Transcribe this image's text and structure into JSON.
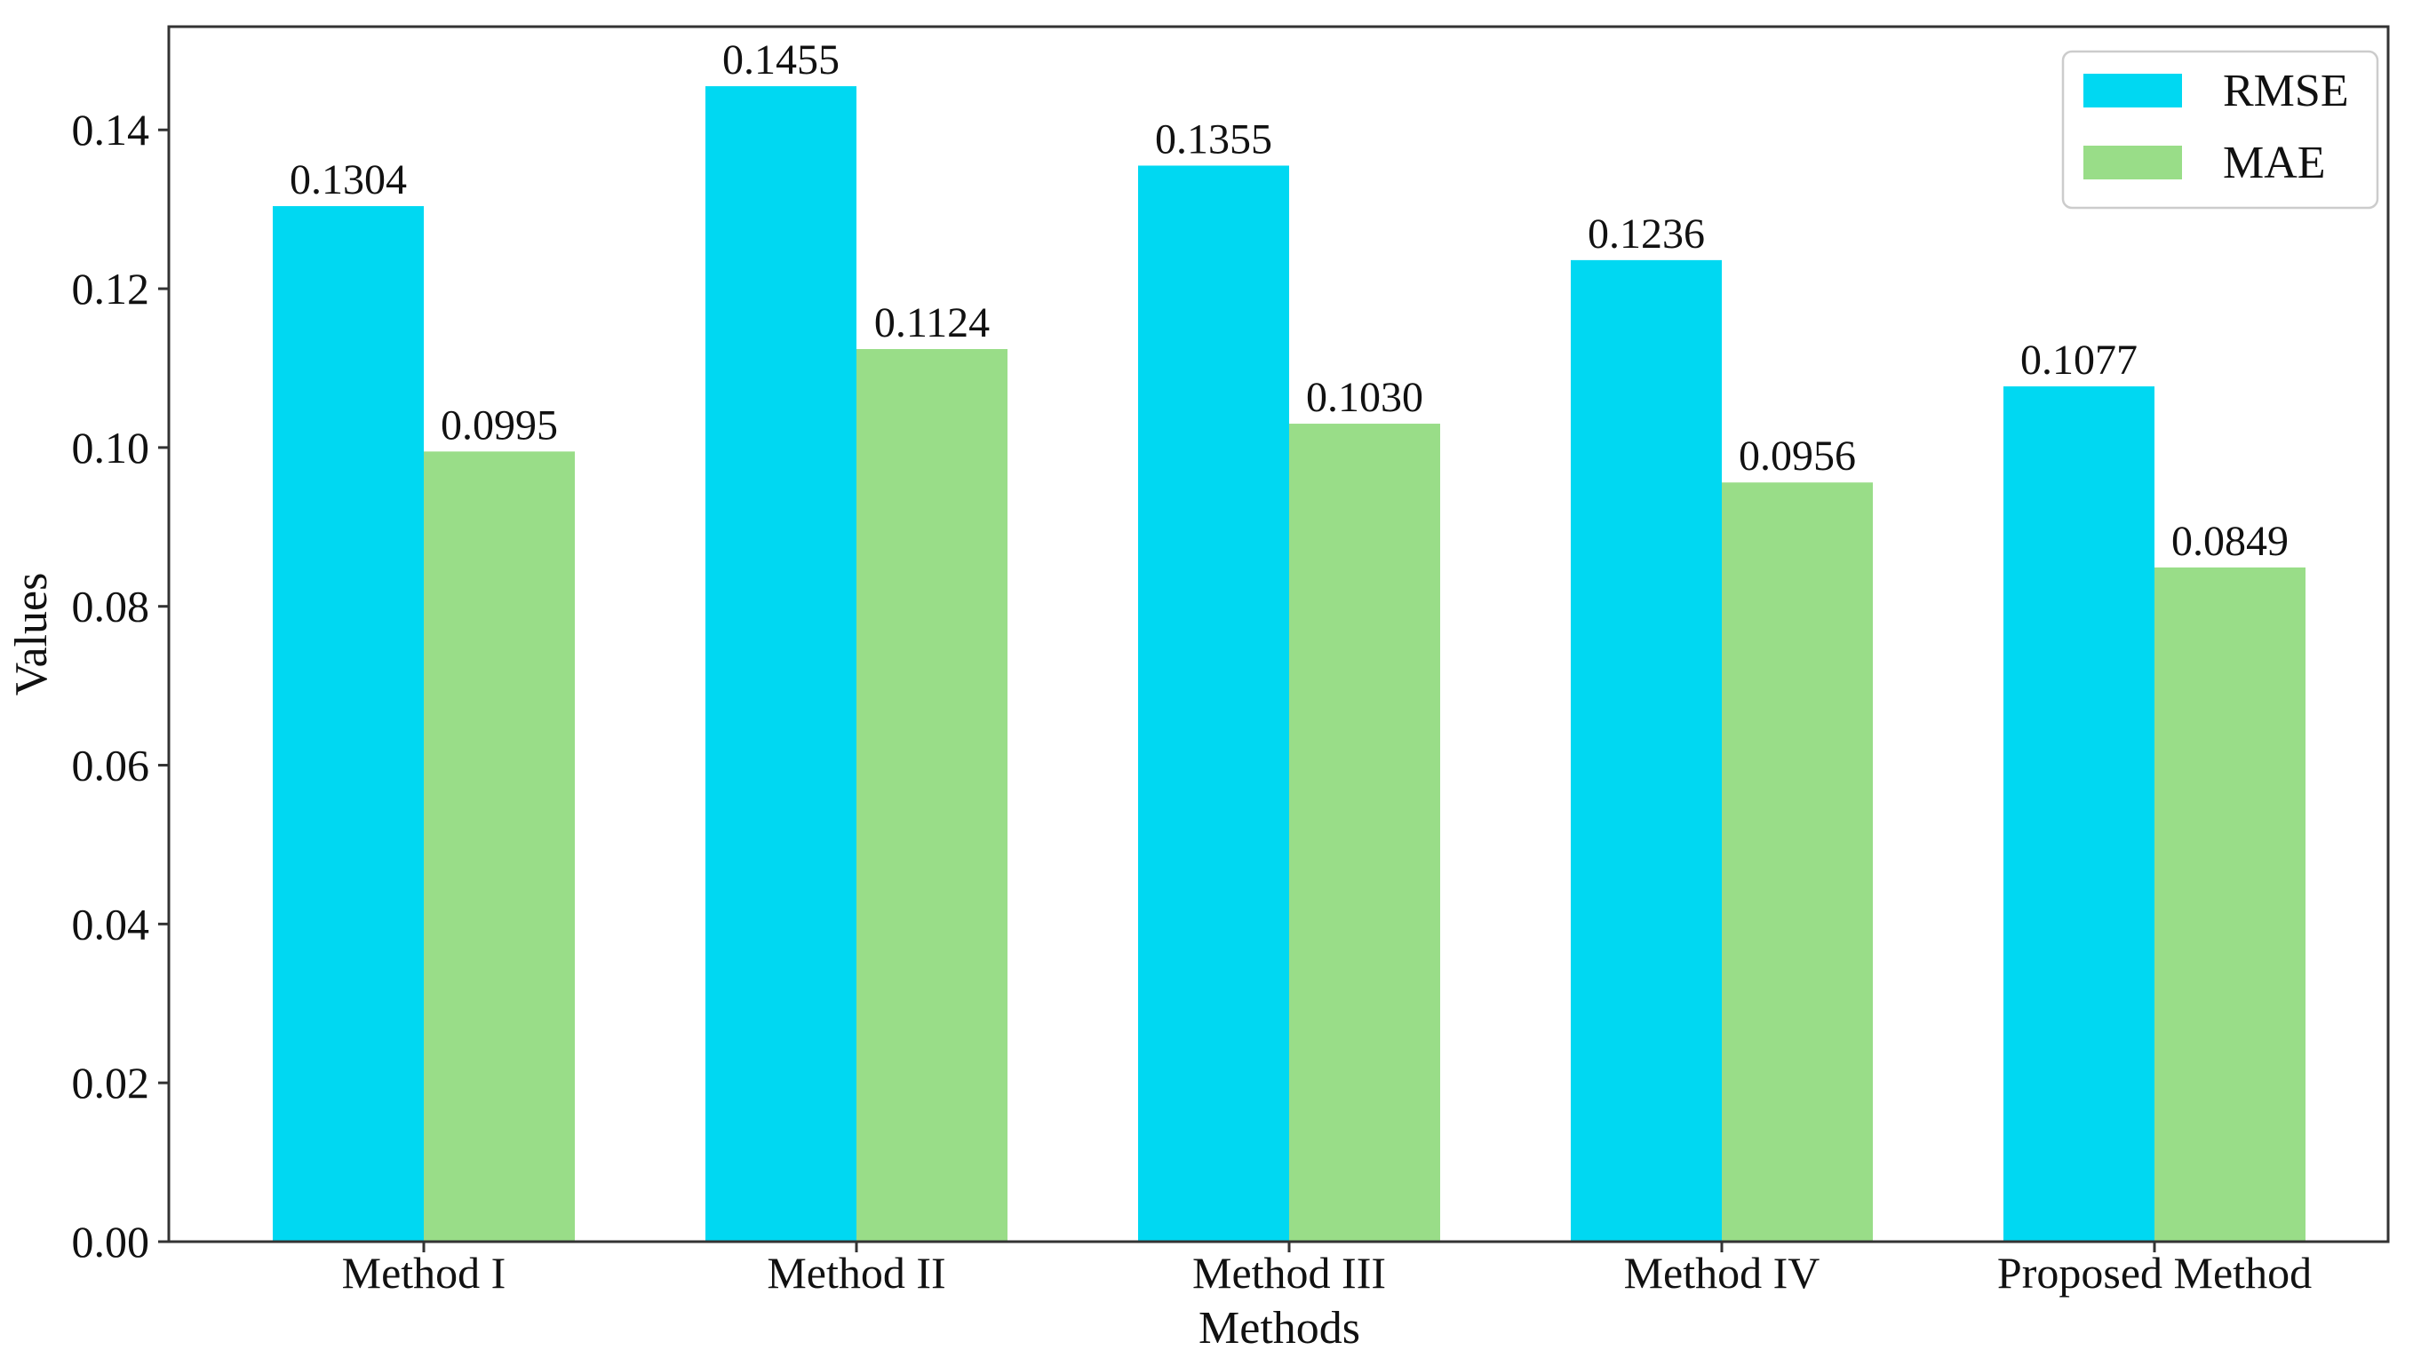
{
  "chart_data": {
    "type": "bar",
    "title": "",
    "xlabel": "Methods",
    "ylabel": "Values",
    "ylim": [
      0,
      0.153
    ],
    "yticks": [
      "0.00",
      "0.02",
      "0.04",
      "0.06",
      "0.08",
      "0.10",
      "0.12",
      "0.14"
    ],
    "categories": [
      "Method I",
      "Method II",
      "Method III",
      "Method IV",
      "Proposed Method"
    ],
    "series": [
      {
        "name": "RMSE",
        "color": "#00d8f2",
        "values": [
          0.1304,
          0.1455,
          0.1355,
          0.1236,
          0.1077
        ],
        "labels": [
          "0.1304",
          "0.1455",
          "0.1355",
          "0.1236",
          "0.1077"
        ]
      },
      {
        "name": "MAE",
        "color": "#99dd88",
        "values": [
          0.0995,
          0.1124,
          0.103,
          0.0956,
          0.0849
        ],
        "labels": [
          "0.0995",
          "0.1124",
          "0.1030",
          "0.0956",
          "0.0849"
        ]
      }
    ],
    "legend": {
      "position": "top-right",
      "entries": [
        "RMSE",
        "MAE"
      ]
    },
    "grid": false
  }
}
